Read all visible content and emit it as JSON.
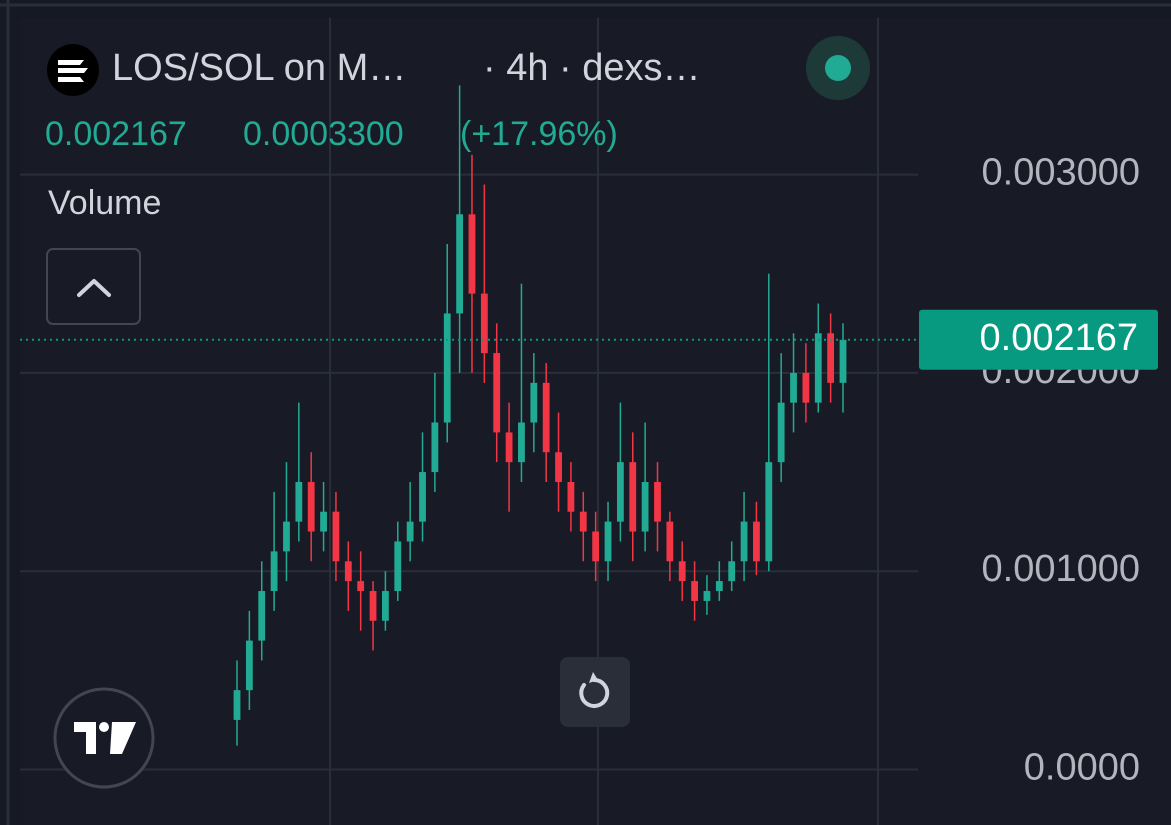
{
  "chart_data": {
    "type": "candlestick",
    "title": "LOS/SOL on M…",
    "subtitle": "· 4h · dexs…",
    "last_price": 0.002167,
    "change": "0.0003300",
    "change_pct": "(+17.96%)",
    "pane_label": "Volume",
    "up_color": "#22ab94",
    "down_color": "#f23645",
    "price_line_color": "#089981",
    "ylim": [
      -0.00028,
      0.00379
    ],
    "yticks": [
      {
        "value": 0,
        "label": "0.0000"
      },
      {
        "value": 0.001,
        "label": "0.001000"
      },
      {
        "value": 0.002,
        "label": "0.002000"
      },
      {
        "value": 0.003,
        "label": "0.003000"
      }
    ],
    "grid": true,
    "open": [
      0.00025,
      0.0004,
      0.00065,
      0.0009,
      0.0011,
      0.00125,
      0.00145,
      0.0012,
      0.0013,
      0.00105,
      0.00095,
      0.0009,
      0.00075,
      0.0009,
      0.00115,
      0.00125,
      0.0015,
      0.00175,
      0.0023,
      0.0028,
      0.0024,
      0.0021,
      0.0017,
      0.00155,
      0.00175,
      0.00195,
      0.0016,
      0.00145,
      0.0013,
      0.0012,
      0.00105,
      0.00125,
      0.00155,
      0.0012,
      0.00145,
      0.00125,
      0.00105,
      0.00095,
      0.00085,
      0.0009,
      0.00095,
      0.00105,
      0.00125,
      0.00105,
      0.00155,
      0.00185,
      0.002,
      0.00185,
      0.0022,
      0.00195
    ],
    "high": [
      0.00055,
      0.0008,
      0.00105,
      0.0014,
      0.00155,
      0.00185,
      0.0016,
      0.00145,
      0.0014,
      0.00115,
      0.0011,
      0.00095,
      0.001,
      0.00125,
      0.00145,
      0.0017,
      0.002,
      0.00265,
      0.00345,
      0.0031,
      0.00295,
      0.00225,
      0.00185,
      0.00245,
      0.0021,
      0.00205,
      0.0018,
      0.00155,
      0.0014,
      0.0013,
      0.00135,
      0.00185,
      0.0017,
      0.00175,
      0.00155,
      0.0013,
      0.00115,
      0.00105,
      0.00098,
      0.00105,
      0.00115,
      0.0014,
      0.00135,
      0.0025,
      0.0021,
      0.0022,
      0.00215,
      0.00235,
      0.0023,
      0.00225
    ],
    "low": [
      0.00012,
      0.0003,
      0.00055,
      0.0008,
      0.00095,
      0.00115,
      0.00105,
      0.0011,
      0.00095,
      0.0008,
      0.0007,
      0.0006,
      0.0007,
      0.00085,
      0.00105,
      0.00115,
      0.0014,
      0.00165,
      0.002,
      0.002,
      0.00195,
      0.00155,
      0.0013,
      0.00145,
      0.0016,
      0.00145,
      0.0013,
      0.0012,
      0.00105,
      0.00095,
      0.00095,
      0.00115,
      0.00105,
      0.0011,
      0.0011,
      0.00095,
      0.00085,
      0.00075,
      0.00078,
      0.00085,
      0.0009,
      0.00095,
      0.00098,
      0.001,
      0.00145,
      0.0017,
      0.00175,
      0.0018,
      0.00185,
      0.0018
    ],
    "close": [
      0.0004,
      0.00065,
      0.0009,
      0.0011,
      0.00125,
      0.00145,
      0.0012,
      0.0013,
      0.00105,
      0.00095,
      0.0009,
      0.00075,
      0.0009,
      0.00115,
      0.00125,
      0.0015,
      0.00175,
      0.0023,
      0.0028,
      0.0024,
      0.0021,
      0.0017,
      0.00155,
      0.00175,
      0.00195,
      0.0016,
      0.00145,
      0.0013,
      0.0012,
      0.00105,
      0.00125,
      0.00155,
      0.0012,
      0.00145,
      0.00125,
      0.00105,
      0.00095,
      0.00085,
      0.0009,
      0.00095,
      0.00105,
      0.00125,
      0.00105,
      0.00155,
      0.00185,
      0.002,
      0.00185,
      0.0022,
      0.00195,
      0.002167
    ]
  }
}
